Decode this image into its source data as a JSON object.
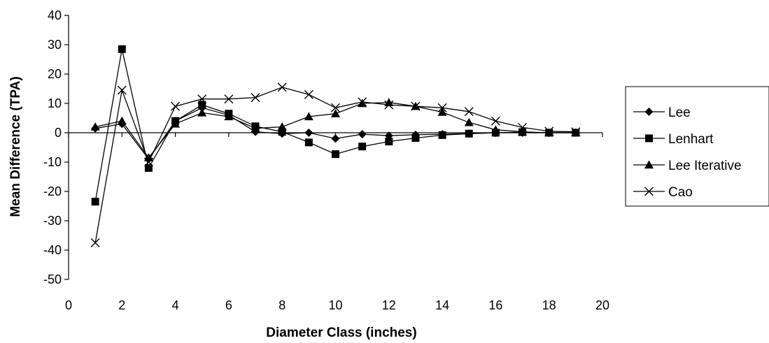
{
  "chart_data": {
    "type": "line",
    "title": "",
    "xlabel": "Diameter Class (inches)",
    "ylabel": "Mean Difference (TPA)",
    "xlim": [
      0,
      20
    ],
    "ylim": [
      -50,
      40
    ],
    "xticks": [
      0,
      2,
      4,
      6,
      8,
      10,
      12,
      14,
      16,
      18,
      20
    ],
    "yticks": [
      40,
      30,
      20,
      10,
      0,
      -10,
      -20,
      -30,
      -40,
      -50
    ],
    "grid": false,
    "legend_position": "right",
    "x": [
      1,
      2,
      3,
      4,
      5,
      6,
      7,
      8,
      9,
      10,
      11,
      12,
      13,
      14,
      15,
      16,
      17,
      18,
      19
    ],
    "series": [
      {
        "name": "Lee",
        "marker": "diamond",
        "values": [
          1.5,
          3,
          -9,
          4,
          8.5,
          6,
          0.3,
          -0.3,
          0,
          -2,
          -0.5,
          -1,
          -0.7,
          -0.5,
          -0.3,
          0,
          0,
          0,
          0
        ]
      },
      {
        "name": "Lenhart",
        "marker": "square",
        "values": [
          -23.5,
          28.5,
          -12,
          4,
          9.5,
          6.5,
          2.2,
          0.3,
          -3.3,
          -7.3,
          -4.7,
          -3,
          -1.8,
          -0.8,
          -0.3,
          0,
          0.2,
          0,
          0
        ]
      },
      {
        "name": "Lee Iterative",
        "marker": "triangle",
        "values": [
          2,
          4,
          -8.5,
          3,
          6.8,
          5.5,
          1.5,
          2,
          5.5,
          6.5,
          10,
          10.3,
          9,
          7,
          3.5,
          1,
          0.3,
          0,
          0
        ]
      },
      {
        "name": "Cao",
        "marker": "x",
        "values": [
          -37.5,
          14.5,
          -10,
          9,
          11.5,
          11.5,
          12,
          15.5,
          13,
          8.5,
          10.5,
          9.5,
          9,
          8.5,
          7.2,
          4,
          1.8,
          0.5,
          0.3
        ]
      }
    ]
  }
}
